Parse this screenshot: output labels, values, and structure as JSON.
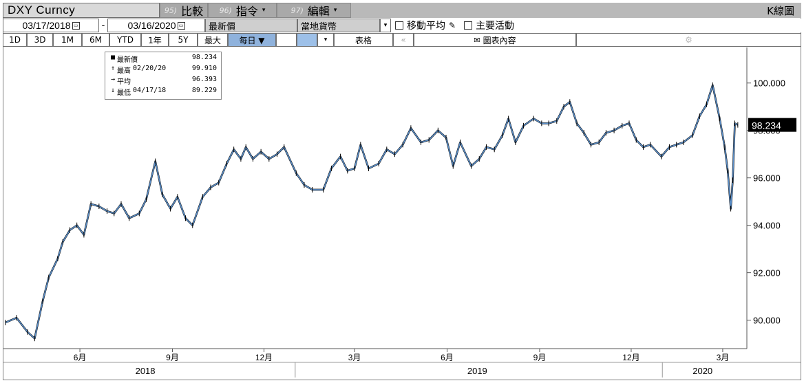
{
  "header": {
    "ticker": "DXY Curncy",
    "menu": [
      {
        "num": "95)",
        "label": "比較",
        "caret": ""
      },
      {
        "num": "96)",
        "label": "指令",
        "caret": "▾"
      },
      {
        "num": "97)",
        "label": "編輯",
        "caret": "▾"
      }
    ],
    "chart_title": "K線圖"
  },
  "controls": {
    "start_date": "03/17/2018",
    "end_date": "03/16/2020",
    "dash": "-",
    "value_type": "最新價",
    "currency": "當地貨幣",
    "moving_avg_label": "移動平均",
    "key_events_label": "主要活動"
  },
  "periods": [
    "1D",
    "3D",
    "1M",
    "6M",
    "YTD",
    "1年",
    "5Y",
    "最大"
  ],
  "frequency": "每日 ▼",
  "table_label": "表格",
  "chart_content_label": "圖表內容",
  "legend": {
    "last": {
      "label": "最新價",
      "date": "",
      "value": "98.234"
    },
    "high": {
      "label": "最高",
      "date": "02/20/20",
      "value": "99.910"
    },
    "avg": {
      "label": "平均",
      "date": "",
      "value": "96.393"
    },
    "low": {
      "label": "最低",
      "date": "04/17/18",
      "value": "89.229"
    }
  },
  "colors": {
    "line_blue": "#5b8fc9",
    "line_dark": "#000000",
    "label_bg": "#000000"
  },
  "chart_data": {
    "type": "line",
    "title": "",
    "xlabel": "",
    "ylabel": "",
    "ylim": [
      88.8,
      101.5
    ],
    "yticks": [
      "90.000",
      "92.000",
      "94.000",
      "96.000",
      "98.000",
      "100.000"
    ],
    "ytick_values": [
      90,
      92,
      94,
      96,
      98,
      100
    ],
    "x_month_labels": [
      "6月",
      "9月",
      "12月",
      "3月",
      "6月",
      "9月",
      "12月",
      "3月"
    ],
    "x_year_labels": [
      "2018",
      "2019",
      "2020"
    ],
    "last_value_label": "98.234",
    "x": [
      "2018-03-19",
      "2018-03-30",
      "2018-04-10",
      "2018-04-17",
      "2018-04-25",
      "2018-05-01",
      "2018-05-10",
      "2018-05-15",
      "2018-05-22",
      "2018-05-29",
      "2018-06-05",
      "2018-06-12",
      "2018-06-20",
      "2018-06-28",
      "2018-07-05",
      "2018-07-12",
      "2018-07-20",
      "2018-07-30",
      "2018-08-06",
      "2018-08-15",
      "2018-08-22",
      "2018-08-30",
      "2018-09-06",
      "2018-09-14",
      "2018-09-21",
      "2018-10-01",
      "2018-10-09",
      "2018-10-17",
      "2018-10-25",
      "2018-11-01",
      "2018-11-08",
      "2018-11-13",
      "2018-11-20",
      "2018-11-28",
      "2018-12-06",
      "2018-12-14",
      "2018-12-21",
      "2019-01-02",
      "2019-01-10",
      "2019-01-18",
      "2019-01-29",
      "2019-02-06",
      "2019-02-15",
      "2019-02-22",
      "2019-03-01",
      "2019-03-07",
      "2019-03-15",
      "2019-03-25",
      "2019-04-02",
      "2019-04-10",
      "2019-04-18",
      "2019-04-26",
      "2019-05-06",
      "2019-05-14",
      "2019-05-23",
      "2019-05-31",
      "2019-06-07",
      "2019-06-14",
      "2019-06-25",
      "2019-07-03",
      "2019-07-10",
      "2019-07-18",
      "2019-07-26",
      "2019-08-01",
      "2019-08-08",
      "2019-08-16",
      "2019-08-26",
      "2019-09-03",
      "2019-09-10",
      "2019-09-18",
      "2019-09-25",
      "2019-10-01",
      "2019-10-08",
      "2019-10-15",
      "2019-10-22",
      "2019-10-30",
      "2019-11-06",
      "2019-11-14",
      "2019-11-22",
      "2019-11-29",
      "2019-12-06",
      "2019-12-13",
      "2019-12-20",
      "2019-12-31",
      "2020-01-08",
      "2020-01-15",
      "2020-01-22",
      "2020-01-31",
      "2020-02-07",
      "2020-02-14",
      "2020-02-20",
      "2020-02-27",
      "2020-03-03",
      "2020-03-06",
      "2020-03-09",
      "2020-03-11",
      "2020-03-13",
      "2020-03-16"
    ],
    "series": [
      {
        "values": [
          89.9,
          90.1,
          89.5,
          89.229,
          90.8,
          91.8,
          92.6,
          93.3,
          93.8,
          94.0,
          93.6,
          94.9,
          94.8,
          94.6,
          94.5,
          94.9,
          94.3,
          94.5,
          95.1,
          96.7,
          95.3,
          94.7,
          95.2,
          94.3,
          94.0,
          95.2,
          95.6,
          95.8,
          96.6,
          97.2,
          96.8,
          97.3,
          96.8,
          97.1,
          96.8,
          97.0,
          97.3,
          96.2,
          95.7,
          95.5,
          95.5,
          96.4,
          96.9,
          96.3,
          96.4,
          97.4,
          96.4,
          96.6,
          97.2,
          97.0,
          97.4,
          98.1,
          97.5,
          97.6,
          98.0,
          97.7,
          96.5,
          97.5,
          96.5,
          96.8,
          97.3,
          97.2,
          97.8,
          98.5,
          97.5,
          98.2,
          98.5,
          98.3,
          98.3,
          98.4,
          99.0,
          99.2,
          98.3,
          97.9,
          97.4,
          97.5,
          97.9,
          98.0,
          98.2,
          98.3,
          97.6,
          97.3,
          97.4,
          96.9,
          97.3,
          97.4,
          97.5,
          97.8,
          98.6,
          99.1,
          99.91,
          98.5,
          97.3,
          96.3,
          94.7,
          95.9,
          98.3,
          98.234
        ]
      }
    ]
  }
}
